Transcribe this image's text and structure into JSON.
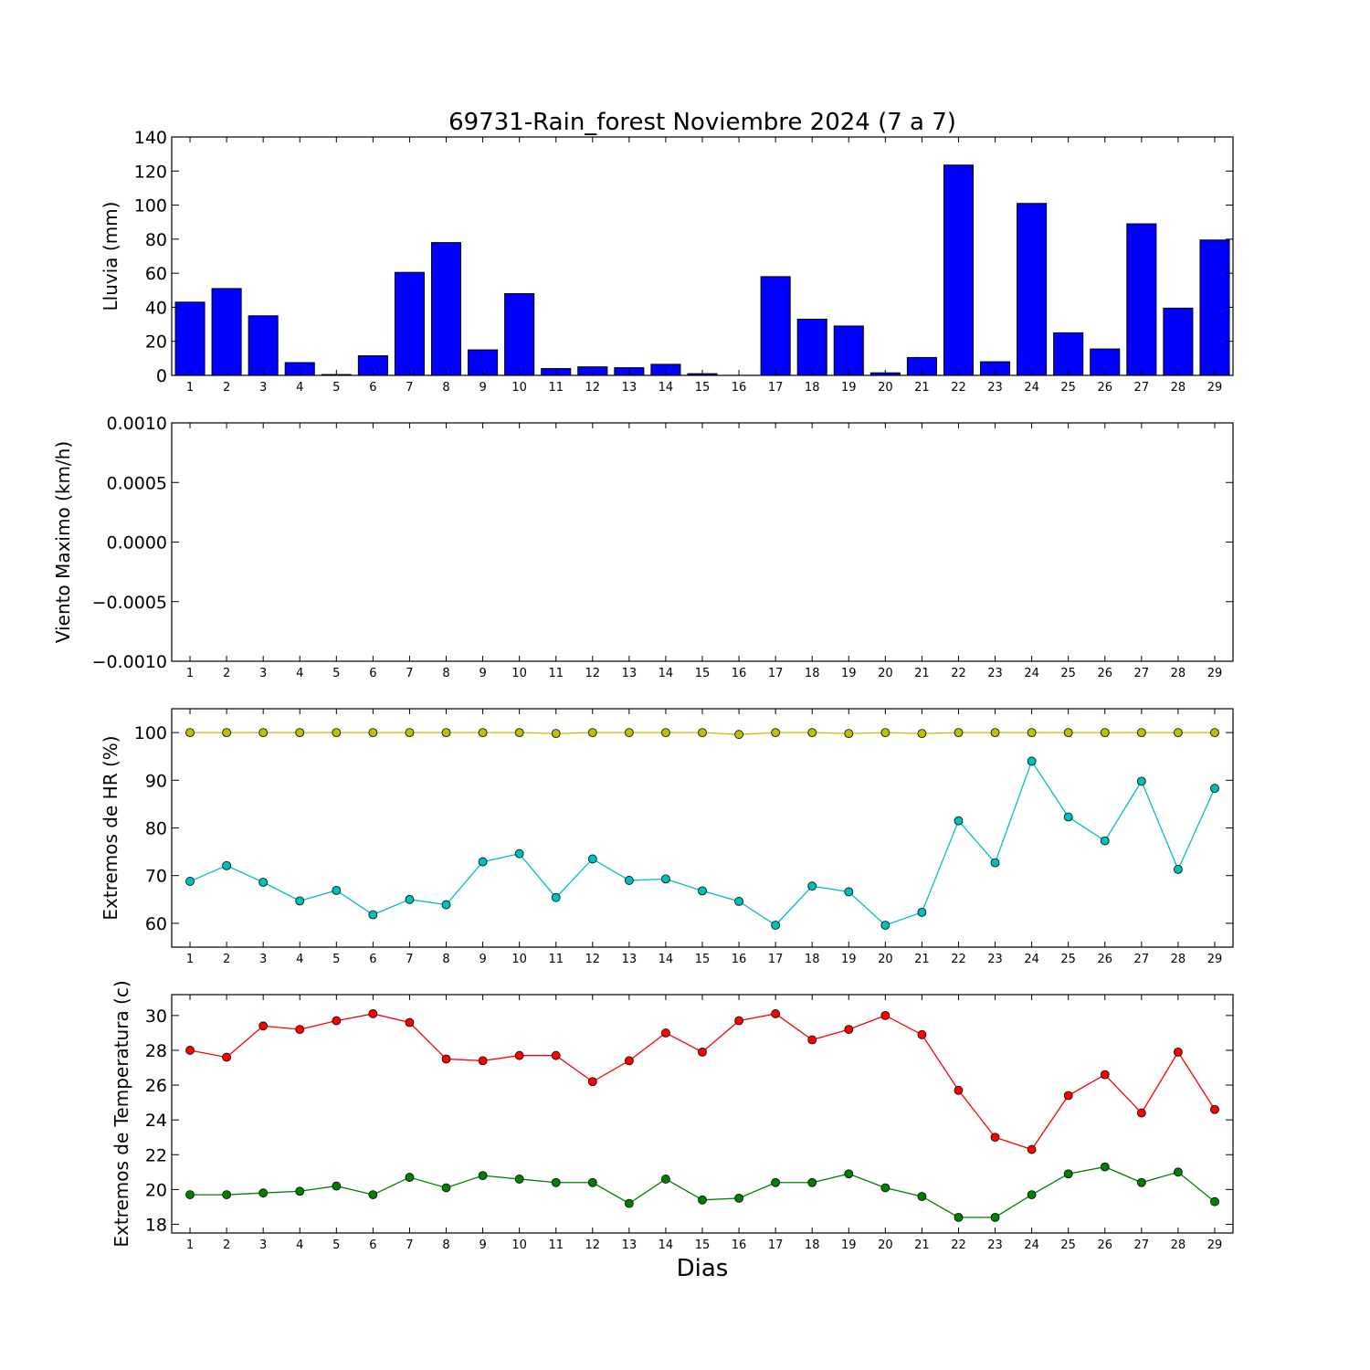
{
  "title": "69731-Rain_forest Noviembre 2024  (7 a 7)",
  "xlabel": "Dias",
  "colors": {
    "rain_bar": "#0000ff",
    "hr_max": "#bfbf00",
    "hr_min": "#00bfbf",
    "temp_max": "#ff0000",
    "temp_min": "#008000"
  },
  "chart_data": [
    {
      "type": "bar",
      "ylabel": "Lluvia (mm)",
      "categories": [
        "1",
        "2",
        "3",
        "4",
        "5",
        "6",
        "7",
        "8",
        "9",
        "10",
        "11",
        "12",
        "13",
        "14",
        "15",
        "16",
        "17",
        "18",
        "19",
        "20",
        "21",
        "22",
        "23",
        "24",
        "25",
        "26",
        "27",
        "28",
        "29"
      ],
      "values": [
        43,
        51,
        35,
        7.5,
        0.5,
        11.5,
        60.5,
        78,
        15,
        48,
        4,
        5,
        4.5,
        6.5,
        1,
        0,
        58,
        33,
        29,
        1.5,
        10.5,
        123.5,
        8,
        101,
        25,
        15.5,
        89,
        39.5,
        79.5
      ],
      "ylim": [
        0,
        140
      ],
      "yticks": [
        "0",
        "20",
        "40",
        "60",
        "80",
        "100",
        "120",
        "140"
      ]
    },
    {
      "type": "line",
      "ylabel": "Viento Maximo (km/h)",
      "categories": [
        "1",
        "2",
        "3",
        "4",
        "5",
        "6",
        "7",
        "8",
        "9",
        "10",
        "11",
        "12",
        "13",
        "14",
        "15",
        "16",
        "17",
        "18",
        "19",
        "20",
        "21",
        "22",
        "23",
        "24",
        "25",
        "26",
        "27",
        "28",
        "29"
      ],
      "series": [],
      "ylim": [
        -0.001,
        0.001
      ],
      "yticks": [
        "−0.0010",
        "−0.0005",
        "0.0000",
        "0.0005",
        "0.0010"
      ]
    },
    {
      "type": "line",
      "ylabel": "Extremos de HR (%)",
      "categories": [
        "1",
        "2",
        "3",
        "4",
        "5",
        "6",
        "7",
        "8",
        "9",
        "10",
        "11",
        "12",
        "13",
        "14",
        "15",
        "16",
        "17",
        "18",
        "19",
        "20",
        "21",
        "22",
        "23",
        "24",
        "25",
        "26",
        "27",
        "28",
        "29"
      ],
      "series": [
        {
          "color": "#bfbf00",
          "values": [
            100,
            100,
            100,
            100,
            100,
            100,
            100,
            100,
            100,
            100,
            99.8,
            100,
            100,
            100,
            100,
            99.6,
            100,
            100,
            99.8,
            100,
            99.8,
            100,
            100,
            100,
            100,
            100,
            100,
            100,
            100
          ]
        },
        {
          "color": "#00bfbf",
          "values": [
            68.8,
            72.1,
            68.6,
            64.7,
            66.9,
            61.8,
            65,
            63.9,
            72.9,
            74.6,
            65.4,
            73.5,
            69,
            69.3,
            66.8,
            64.6,
            59.6,
            67.8,
            66.6,
            59.6,
            62.3,
            81.5,
            72.7,
            94,
            82.3,
            77.3,
            89.8,
            71.3,
            88.3
          ]
        }
      ],
      "ylim": [
        55,
        105
      ],
      "yticks": [
        "60",
        "70",
        "80",
        "90",
        "100"
      ]
    },
    {
      "type": "line",
      "ylabel": "Extremos de Temperatura (c)",
      "categories": [
        "1",
        "2",
        "3",
        "4",
        "5",
        "6",
        "7",
        "8",
        "9",
        "10",
        "11",
        "12",
        "13",
        "14",
        "15",
        "16",
        "17",
        "18",
        "19",
        "20",
        "21",
        "22",
        "23",
        "24",
        "25",
        "26",
        "27",
        "28",
        "29"
      ],
      "series": [
        {
          "color": "#ff0000",
          "values": [
            28,
            27.6,
            29.4,
            29.2,
            29.7,
            30.1,
            29.6,
            27.5,
            27.4,
            27.7,
            27.7,
            26.2,
            27.4,
            29,
            27.9,
            29.7,
            30.1,
            28.6,
            29.2,
            30,
            28.9,
            25.7,
            23,
            22.3,
            25.4,
            26.6,
            24.4,
            27.9,
            24.6
          ]
        },
        {
          "color": "#008000",
          "values": [
            19.7,
            19.7,
            19.8,
            19.9,
            20.2,
            19.7,
            20.7,
            20.1,
            20.8,
            20.6,
            20.4,
            20.4,
            19.2,
            20.6,
            19.4,
            19.5,
            20.4,
            20.4,
            20.9,
            20.1,
            19.6,
            18.4,
            18.4,
            19.7,
            20.9,
            21.3,
            20.4,
            21,
            19.3
          ]
        }
      ],
      "ylim": [
        17.5,
        31.2
      ],
      "yticks": [
        "18",
        "20",
        "22",
        "24",
        "26",
        "28",
        "30"
      ]
    }
  ]
}
